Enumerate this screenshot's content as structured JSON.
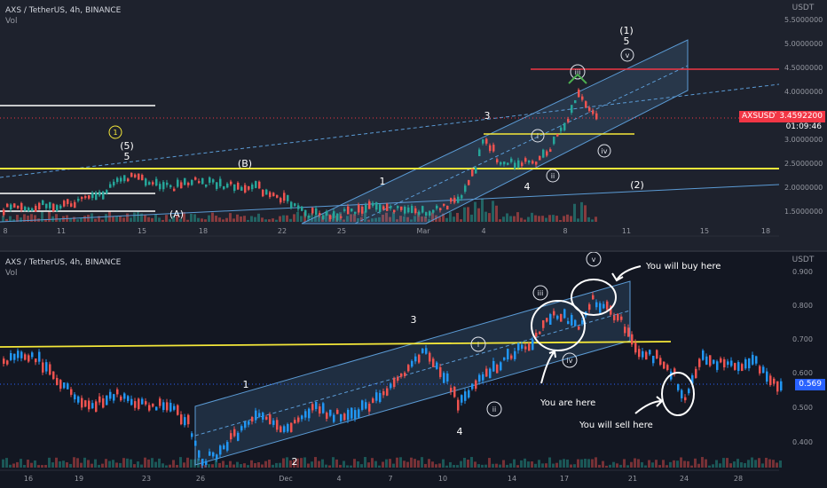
{
  "top": {
    "title": "AXS / TetherUS, 4h, BINANCE",
    "vol_label": "Vol",
    "currency": "USDT",
    "y_ticks": [
      "5.5000000",
      "5.0000000",
      "4.5000000",
      "4.0000000",
      "3.5000000",
      "3.0000000",
      "2.5000000",
      "2.0000000",
      "1.5000000"
    ],
    "x_ticks": [
      "8",
      "11",
      "15",
      "18",
      "22",
      "25",
      "Mar",
      "4",
      "8",
      "11",
      "15",
      "18"
    ],
    "symbol_tag": "AXSUSDT",
    "last_price": "3.4592200",
    "timer": "01:09:46",
    "labels": {
      "w1": "(1)",
      "w5a": "5",
      "wv": "v",
      "wiii": "iii",
      "w3": "3",
      "wi": "i",
      "wiv": "iv",
      "wii": "ii",
      "w4": "4",
      "w2b": "(2)",
      "w1b": "1",
      "wB": "(B)",
      "wA": "(A)",
      "w5b": "(5)",
      "w5c": "5",
      "wy1": "1"
    }
  },
  "bottom": {
    "title": "AXS / TetherUS, 4h, BINANCE",
    "vol_label": "Vol",
    "currency": "USDT",
    "y_ticks": [
      "0.900",
      "0.800",
      "0.700",
      "0.600",
      "0.500",
      "0.400"
    ],
    "x_ticks": [
      "16",
      "19",
      "23",
      "26",
      "Dec",
      "4",
      "7",
      "10",
      "14",
      "17",
      "21",
      "24",
      "28"
    ],
    "last_price": "0.569",
    "labels": {
      "wv": "v",
      "wiii": "iii",
      "w3": "3",
      "wi": "i",
      "wiv": "iv",
      "w1": "1",
      "wii": "ii",
      "w4": "4",
      "w2": "2"
    },
    "annotations": {
      "buy": "You will buy here",
      "here": "You are here",
      "sell": "You will sell here"
    }
  },
  "colors": {
    "up": "#26a69a",
    "down": "#ef5350",
    "yellow": "#f5e839",
    "channel": "#5b9bd5",
    "red_line": "#f23645",
    "bg_top": "#1e222d",
    "bg_bottom": "#131722"
  }
}
